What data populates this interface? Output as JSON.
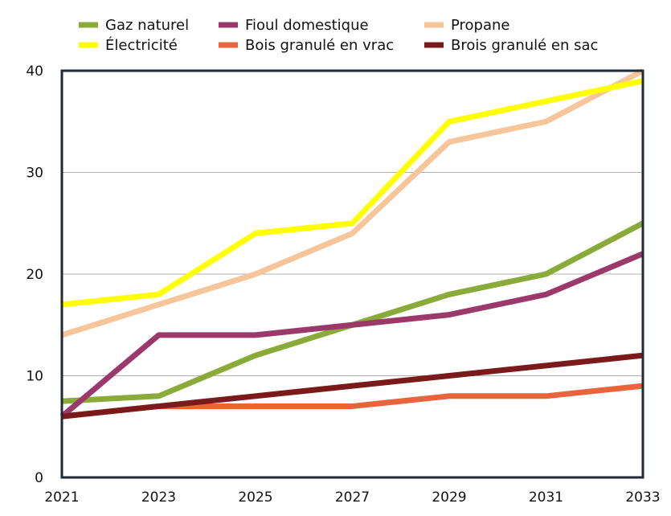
{
  "chart_data": {
    "type": "line",
    "title": "",
    "xlabel": "",
    "ylabel": "",
    "x": [
      2021,
      2023,
      2025,
      2027,
      2029,
      2031,
      2033
    ],
    "xlim": [
      2021,
      2033
    ],
    "ylim": [
      0,
      40
    ],
    "yticks": [
      0,
      10,
      20,
      30,
      40
    ],
    "grid": "horizontal",
    "legend_position": "top",
    "series": [
      {
        "name": "Gaz naturel",
        "color": "#8aab3a",
        "values": [
          7.5,
          8,
          12,
          15,
          18,
          20,
          25
        ]
      },
      {
        "name": "Fioul domestique",
        "color": "#9b3a6a",
        "values": [
          6,
          14,
          14,
          15,
          16,
          18,
          22
        ]
      },
      {
        "name": "Propane",
        "color": "#f7c59a",
        "values": [
          14,
          17,
          20,
          24,
          33,
          35,
          40
        ]
      },
      {
        "name": "Électricité",
        "color": "#ffff00",
        "values": [
          17,
          18,
          24,
          25,
          35,
          37,
          39
        ]
      },
      {
        "name": "Bois granulé en vrac",
        "color": "#e8643c",
        "values": [
          6,
          7,
          7,
          7,
          8,
          8,
          9
        ]
      },
      {
        "name": "Brois granulé en sac",
        "color": "#7a1a1a",
        "values": [
          6,
          7,
          8,
          9,
          10,
          11,
          12
        ]
      }
    ]
  }
}
